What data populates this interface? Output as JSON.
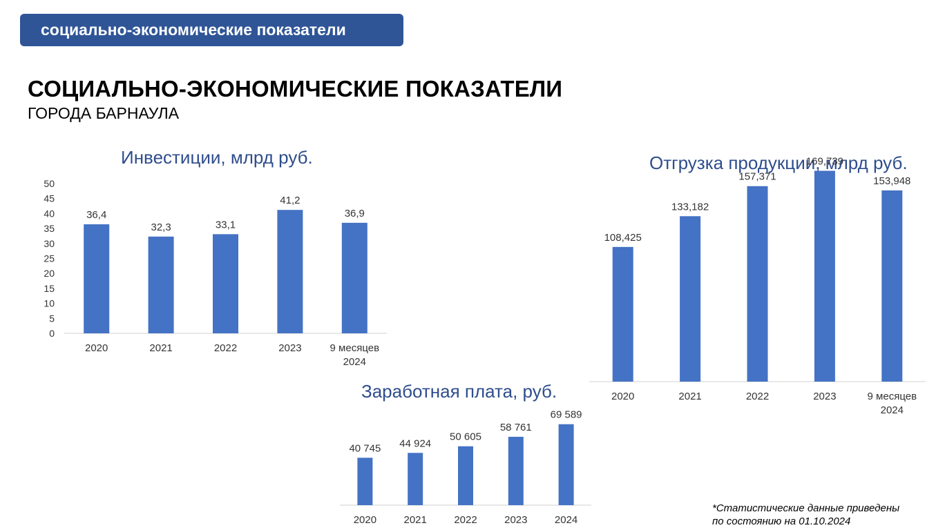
{
  "header": {
    "banner": "социально-экономические показатели",
    "title": "СОЦИАЛЬНО-ЭКОНОМИЧЕСКИЕ ПОКАЗАТЕЛИ",
    "subtitle": "ГОРОДА БАРНАУЛА"
  },
  "footnote": {
    "line1": "*Статистические данные приведены",
    "line2": "по состоянию на 01.10.2024"
  },
  "colors": {
    "bar": "#4472c4",
    "banner": "#2f5597",
    "chart_title": "#2e4d8c"
  },
  "chart_data": [
    {
      "id": "investments",
      "type": "bar",
      "title": "Инвестиции, млрд руб.",
      "categories": [
        [
          "2020"
        ],
        [
          "2021"
        ],
        [
          "2022"
        ],
        [
          "2023"
        ],
        [
          "9 месяцев",
          "2024"
        ]
      ],
      "values": [
        36.4,
        32.3,
        33.1,
        41.2,
        36.9
      ],
      "labels": [
        "36,4",
        "32,3",
        "33,1",
        "41,2",
        "36,9"
      ],
      "ylim": [
        0,
        50
      ],
      "yticks": [
        0,
        5,
        10,
        15,
        20,
        25,
        30,
        35,
        40,
        45,
        50
      ],
      "show_y_axis": true,
      "grid": false
    },
    {
      "id": "shipment",
      "type": "bar",
      "title": "Отгрузка продукции, млрд руб.",
      "categories": [
        [
          "2020"
        ],
        [
          "2021"
        ],
        [
          "2022"
        ],
        [
          "2023"
        ],
        [
          "9 месяцев",
          "2024"
        ]
      ],
      "values": [
        108.425,
        133.182,
        157.371,
        169.739,
        153.948
      ],
      "labels": [
        "108,425",
        "133,182",
        "157,371",
        "169,739",
        "153,948"
      ],
      "ylim": [
        0,
        180
      ],
      "show_y_axis": false,
      "grid": false
    },
    {
      "id": "salary",
      "type": "bar",
      "title": "Заработная плата, руб.",
      "categories": [
        [
          "2020"
        ],
        [
          "2021"
        ],
        [
          "2022"
        ],
        [
          "2023"
        ],
        [
          "2024"
        ]
      ],
      "values": [
        40745,
        44924,
        50605,
        58761,
        69589
      ],
      "labels": [
        "40 745",
        "44 924",
        "50 605",
        "58 761",
        "69 589"
      ],
      "ylim": [
        0,
        70000
      ],
      "show_y_axis": false,
      "grid": false
    }
  ]
}
